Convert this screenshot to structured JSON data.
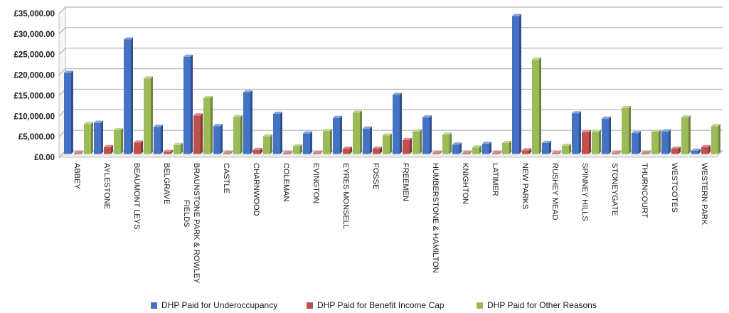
{
  "chart_data": {
    "type": "bar",
    "categories": [
      "ABBEY",
      "AYLESTONE",
      "BEAUMONT LEYS",
      "BELGRAVE",
      "BRAUNSTONE PARK & ROWLEY FIELDS",
      "CASTLE",
      "CHARNWOOD",
      "COLEMAN",
      "EVINGTON",
      "EYRES MONSELL",
      "FOSSE",
      "FREEMEN",
      "HUMBERSTONE & HAMILTON",
      "KNIGHTON",
      "LATIMER",
      "NEW PARKS",
      "RUSHEY MEAD",
      "SPINNEY HILLS",
      "STONEYGATE",
      "THURNCOURT",
      "WESTCOTES",
      "WESTERN PARK"
    ],
    "category_lines": [
      [
        "ABBEY"
      ],
      [
        "AYLESTONE"
      ],
      [
        "BEAUMONT LEYS"
      ],
      [
        "BELGRAVE"
      ],
      [
        "BRAUNSTONE PARK & ROWLEY",
        "FIELDS"
      ],
      [
        "CASTLE"
      ],
      [
        "CHARNWOOD"
      ],
      [
        "COLEMAN"
      ],
      [
        "EVINGTON"
      ],
      [
        "EYRES MONSELL"
      ],
      [
        "FOSSE"
      ],
      [
        "FREEMEN"
      ],
      [
        "HUMBERSTONE & HAMILTON"
      ],
      [
        "KNIGHTON"
      ],
      [
        "LATIMER"
      ],
      [
        "NEW PARKS"
      ],
      [
        "RUSHEY MEAD"
      ],
      [
        "SPINNEY HILLS"
      ],
      [
        "STONEYGATE"
      ],
      [
        "THURNCOURT"
      ],
      [
        "WESTCOTES"
      ],
      [
        "WESTERN PARK"
      ]
    ],
    "series": [
      {
        "name": "DHP Paid for Underoccupancy",
        "color": "#4472C4",
        "values": [
          19800,
          7600,
          27900,
          6600,
          23700,
          6800,
          15000,
          9800,
          5000,
          8800,
          6200,
          14400,
          8900,
          2300,
          2500,
          33600,
          2700,
          9900,
          8600,
          5100,
          5500,
          800
        ]
      },
      {
        "name": "DHP Paid for Benefit Income Cap",
        "color": "#C0504D",
        "values": [
          200,
          1700,
          2800,
          500,
          9400,
          200,
          1000,
          200,
          200,
          1300,
          1300,
          3400,
          200,
          200,
          200,
          900,
          200,
          5300,
          200,
          200,
          1300,
          1700
        ]
      },
      {
        "name": "DHP Paid for Other Reasons",
        "color": "#9BBB59",
        "values": [
          7300,
          5800,
          18400,
          2200,
          13600,
          9000,
          4300,
          1900,
          5600,
          10100,
          4500,
          5500,
          4700,
          1600,
          2700,
          23000,
          2000,
          5400,
          11200,
          5400,
          8900,
          6800
        ]
      }
    ],
    "yticks": [
      "£0.00",
      "£5,000.00",
      "£10,000.00",
      "£15,000.00",
      "£20,000.00",
      "£25,000.00",
      "£30,000.00",
      "£35,000.00"
    ],
    "ylim": [
      0,
      35000
    ],
    "grid": true,
    "legend_position": "bottom"
  }
}
